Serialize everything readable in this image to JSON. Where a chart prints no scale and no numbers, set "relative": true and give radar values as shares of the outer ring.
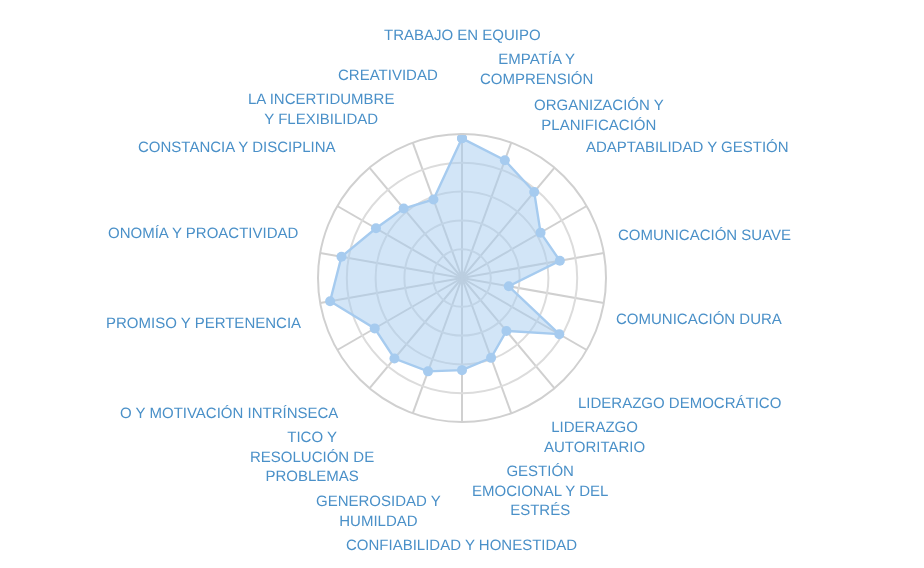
{
  "chart_data": {
    "type": "radar",
    "relative": true,
    "grid": true,
    "marker": "circle",
    "categories": [
      "TRABAJO EN EQUIPO",
      "EMPATÍA Y COMPRENSIÓN",
      "ORGANIZACIÓN Y PLANIFICACIÓN",
      "ADAPTABILIDAD Y GESTIÓN",
      "COMUNICACIÓN SUAVE",
      "COMUNICACIÓN DURA",
      "LIDERAZGO DEMOCRÁTICO",
      "LIDERAZGO AUTORITARIO",
      "GESTIÓN EMOCIONAL Y DEL ESTRÉS",
      "CONFIABILIDAD Y HONESTIDAD",
      "GENEROSIDAD Y HUMILDAD",
      "TICO Y RESOLUCIÓN DE PROBLEMAS",
      "O Y MOTIVACIÓN INTRÍNSECA",
      "PROMISO Y PERTENENCIA",
      "ONOMÍA Y PROACTIVIDAD",
      "CONSTANCIA Y DISCIPLINA",
      "LA INCERTIDUMBRE Y FLEXIBILIDAD",
      "CREATIVIDAD"
    ],
    "series": [
      {
        "color": "#a6cbef",
        "values": [
          0.97,
          0.87,
          0.78,
          0.63,
          0.69,
          0.33,
          0.78,
          0.48,
          0.59,
          0.64,
          0.69,
          0.73,
          0.7,
          0.93,
          0.85,
          0.69,
          0.63,
          0.58
        ]
      }
    ]
  }
}
